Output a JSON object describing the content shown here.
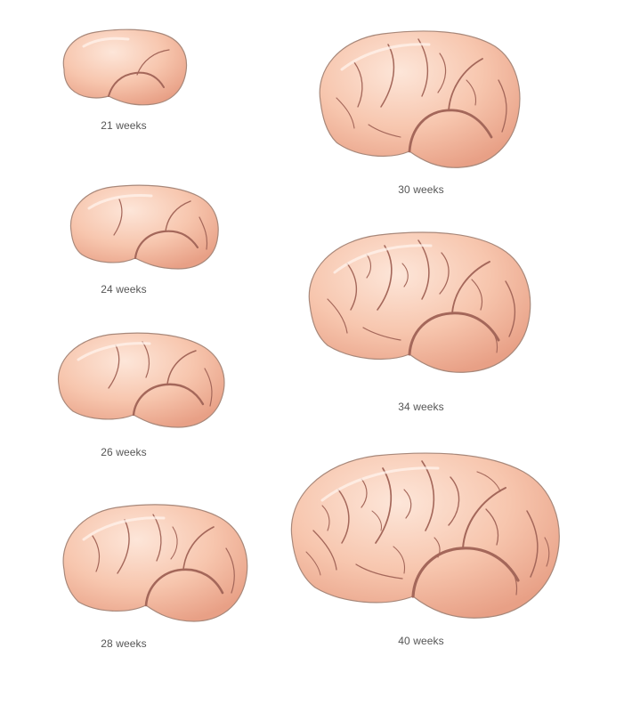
{
  "stages": [
    {
      "label": "21 weeks"
    },
    {
      "label": "24 weeks"
    },
    {
      "label": "26 weeks"
    },
    {
      "label": "28 weeks"
    },
    {
      "label": "30 weeks"
    },
    {
      "label": "34 weeks"
    },
    {
      "label": "40 weeks"
    }
  ],
  "colors": {
    "brain_fill": "#f6c2aa",
    "brain_light": "#fde3d5",
    "brain_shadow": "#e9a48b",
    "sulcus_line": "#a4675a",
    "label_text": "#555555"
  }
}
